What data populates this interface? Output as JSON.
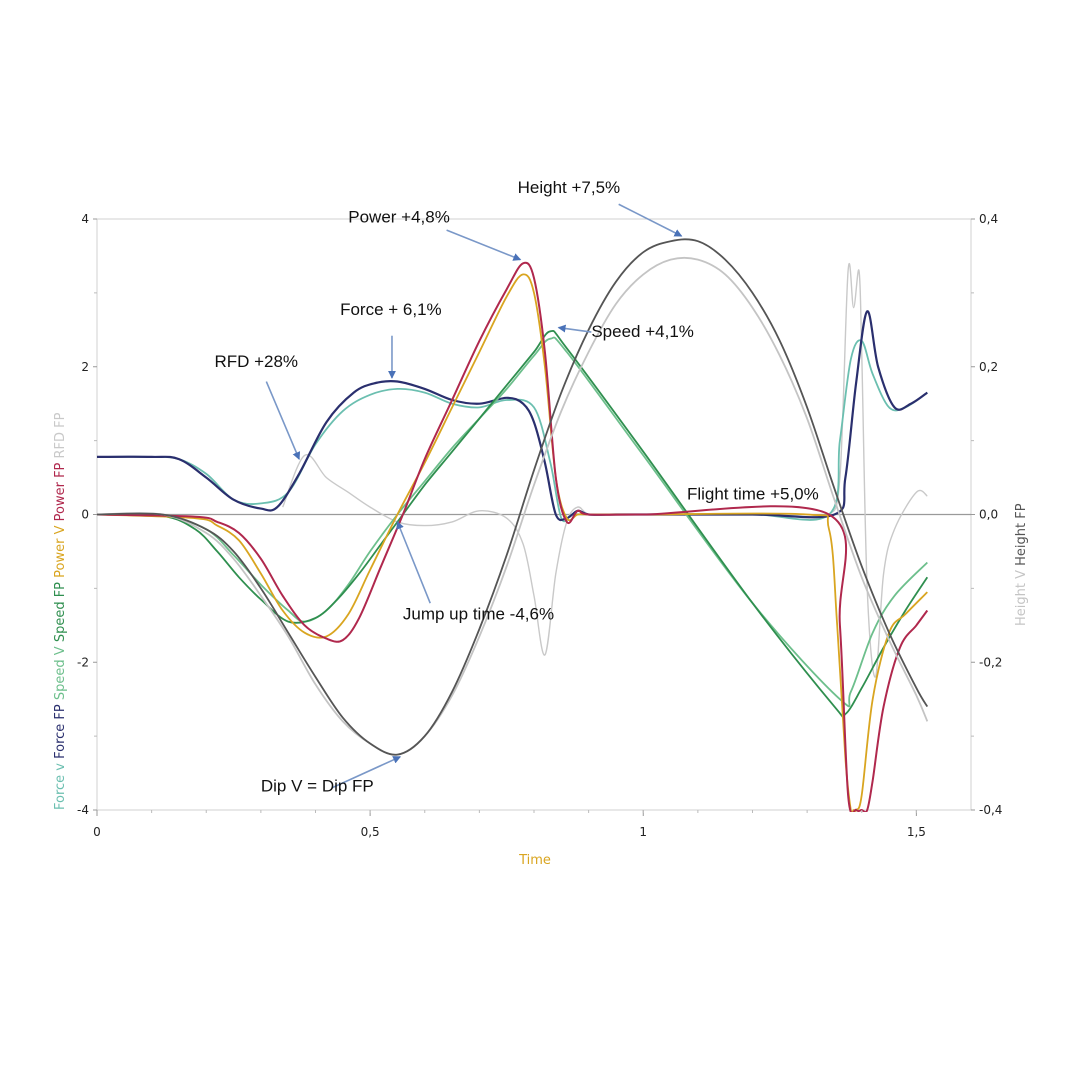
{
  "chart_data": {
    "type": "line",
    "title": "",
    "xlabel": "Time",
    "xlim": [
      0,
      1.6
    ],
    "ylim_left": [
      -4,
      4
    ],
    "ylim_right": [
      -0.4,
      0.4
    ],
    "x_ticks": [
      {
        "v": 0,
        "label": "0"
      },
      {
        "v": 0.5,
        "label": "0,5"
      },
      {
        "v": 1,
        "label": "1"
      },
      {
        "v": 1.5,
        "label": "1,5"
      }
    ],
    "y_left_ticks": [
      {
        "v": 4,
        "label": "4"
      },
      {
        "v": 2,
        "label": "2"
      },
      {
        "v": 0,
        "label": "0"
      },
      {
        "v": -2,
        "label": "-2"
      },
      {
        "v": -4,
        "label": "-4"
      }
    ],
    "y_right_ticks": [
      {
        "v": 0.4,
        "label": "0,4"
      },
      {
        "v": 0.2,
        "label": "0,2"
      },
      {
        "v": 0,
        "label": "0,0"
      },
      {
        "v": -0.2,
        "label": "-0,2"
      },
      {
        "v": -0.4,
        "label": "-0,4"
      }
    ],
    "left_axis_labels": [
      {
        "text": "Force v",
        "color": "#6bbfb0"
      },
      {
        "text": "Force FP",
        "color": "#2a2f6e"
      },
      {
        "text": "Speed V",
        "color": "#6dbf8c"
      },
      {
        "text": "Speed FP",
        "color": "#2f8f4f"
      },
      {
        "text": "Power V",
        "color": "#d9a520"
      },
      {
        "text": "Power FP",
        "color": "#b0284d"
      },
      {
        "text": "RFD FP",
        "color": "#c9c9c9"
      }
    ],
    "right_axis_labels": [
      {
        "text": "Height V",
        "color": "#c4c4c4"
      },
      {
        "text": "Height FP",
        "color": "#555555"
      }
    ],
    "series": [
      {
        "name": "RFD FP",
        "axis": "left",
        "color": "#c9c9c9",
        "width": 1.4,
        "x": [
          0.34,
          0.38,
          0.42,
          0.46,
          0.5,
          0.55,
          0.6,
          0.65,
          0.7,
          0.75,
          0.78,
          0.8,
          0.82,
          0.84,
          0.86,
          0.88,
          0.9,
          0.94,
          1.0,
          1.1,
          1.2,
          1.3,
          1.34,
          1.36,
          1.375,
          1.385,
          1.395,
          1.4,
          1.41,
          1.425,
          1.44,
          1.46,
          1.5,
          1.52
        ],
        "y": [
          0.1,
          0.8,
          0.5,
          0.3,
          0.1,
          -0.1,
          -0.15,
          -0.1,
          0.05,
          -0.05,
          -0.4,
          -1.1,
          -1.9,
          -0.8,
          -0.1,
          0.1,
          0,
          0,
          0,
          0,
          0,
          0,
          0,
          0.5,
          3.3,
          2.8,
          3.3,
          2.2,
          -1.0,
          -2.2,
          -0.8,
          -0.2,
          0.3,
          0.25
        ]
      },
      {
        "name": "Force v",
        "axis": "left",
        "color": "#6bbfb0",
        "width": 1.8,
        "x": [
          0,
          0.1,
          0.15,
          0.2,
          0.25,
          0.3,
          0.35,
          0.4,
          0.45,
          0.5,
          0.55,
          0.6,
          0.65,
          0.7,
          0.75,
          0.8,
          0.83,
          0.85,
          0.87,
          0.9,
          1.0,
          1.2,
          1.34,
          1.36,
          1.38,
          1.4,
          1.42,
          1.45,
          1.48,
          1.52
        ],
        "y": [
          0.78,
          0.78,
          0.75,
          0.55,
          0.2,
          0.15,
          0.3,
          0.95,
          1.4,
          1.62,
          1.7,
          1.65,
          1.5,
          1.45,
          1.55,
          1.45,
          0.7,
          -0.05,
          0.0,
          0.0,
          0.0,
          0.0,
          0.0,
          1.0,
          2.1,
          2.35,
          1.9,
          1.45,
          1.45,
          1.65
        ]
      },
      {
        "name": "Force FP",
        "axis": "left",
        "color": "#2a2f6e",
        "width": 2.2,
        "x": [
          0,
          0.1,
          0.15,
          0.2,
          0.25,
          0.3,
          0.33,
          0.37,
          0.42,
          0.47,
          0.51,
          0.55,
          0.6,
          0.65,
          0.7,
          0.75,
          0.78,
          0.8,
          0.82,
          0.84,
          0.86,
          0.88,
          0.9,
          0.95,
          1.0,
          1.2,
          1.35,
          1.37,
          1.39,
          1.41,
          1.43,
          1.46,
          1.49,
          1.52
        ],
        "y": [
          0.78,
          0.78,
          0.75,
          0.5,
          0.2,
          0.08,
          0.1,
          0.55,
          1.25,
          1.65,
          1.78,
          1.8,
          1.7,
          1.55,
          1.5,
          1.58,
          1.5,
          1.25,
          0.7,
          0.0,
          -0.05,
          0.05,
          0.0,
          0.0,
          0.0,
          0.0,
          0.0,
          0.5,
          1.8,
          2.75,
          2.0,
          1.45,
          1.5,
          1.65
        ]
      },
      {
        "name": "Speed V",
        "axis": "left",
        "color": "#6dbf8c",
        "width": 1.8,
        "x": [
          0,
          0.12,
          0.2,
          0.25,
          0.3,
          0.35,
          0.38,
          0.42,
          0.46,
          0.5,
          0.55,
          0.6,
          0.65,
          0.7,
          0.75,
          0.8,
          0.83,
          0.86,
          1.0,
          1.2,
          1.36,
          1.38,
          1.42,
          1.46,
          1.52
        ],
        "y": [
          0,
          -0.02,
          -0.2,
          -0.55,
          -0.95,
          -1.3,
          -1.45,
          -1.3,
          -0.95,
          -0.5,
          0,
          0.45,
          0.9,
          1.3,
          1.7,
          2.15,
          2.38,
          2.2,
          0.8,
          -1.2,
          -2.5,
          -2.4,
          -1.6,
          -1.1,
          -0.65
        ]
      },
      {
        "name": "Speed FP",
        "axis": "left",
        "color": "#2f8f4f",
        "width": 1.8,
        "x": [
          0,
          0.12,
          0.18,
          0.22,
          0.26,
          0.3,
          0.35,
          0.4,
          0.44,
          0.48,
          0.52,
          0.56,
          0.6,
          0.65,
          0.7,
          0.75,
          0.8,
          0.83,
          0.86,
          1.0,
          1.2,
          1.35,
          1.37,
          1.4,
          1.44,
          1.48,
          1.52
        ],
        "y": [
          0,
          -0.02,
          -0.2,
          -0.5,
          -0.85,
          -1.15,
          -1.45,
          -1.4,
          -1.15,
          -0.8,
          -0.4,
          0,
          0.4,
          0.85,
          1.3,
          1.75,
          2.2,
          2.48,
          2.25,
          0.85,
          -1.2,
          -2.6,
          -2.7,
          -2.35,
          -1.8,
          -1.3,
          -0.85
        ]
      },
      {
        "name": "Power V",
        "axis": "left",
        "color": "#d9a520",
        "width": 1.8,
        "x": [
          0,
          0.18,
          0.22,
          0.26,
          0.3,
          0.34,
          0.38,
          0.42,
          0.46,
          0.5,
          0.55,
          0.6,
          0.65,
          0.7,
          0.75,
          0.78,
          0.8,
          0.82,
          0.84,
          0.86,
          0.88,
          0.9,
          1.0,
          1.3,
          1.34,
          1.355,
          1.37,
          1.38,
          1.385,
          1.39,
          1.4,
          1.42,
          1.45,
          1.48,
          1.52
        ],
        "y": [
          0,
          -0.05,
          -0.15,
          -0.35,
          -0.8,
          -1.3,
          -1.6,
          -1.65,
          -1.35,
          -0.75,
          0,
          0.7,
          1.45,
          2.2,
          2.95,
          3.25,
          3.0,
          2.0,
          0.5,
          -0.05,
          0,
          0,
          0,
          0,
          -0.2,
          -1.5,
          -3.3,
          -4.0,
          -4.0,
          -4.0,
          -3.8,
          -2.5,
          -1.6,
          -1.35,
          -1.05
        ]
      },
      {
        "name": "Power FP",
        "axis": "left",
        "color": "#b0284d",
        "width": 2.0,
        "x": [
          0,
          0.18,
          0.22,
          0.26,
          0.3,
          0.34,
          0.38,
          0.42,
          0.45,
          0.48,
          0.52,
          0.56,
          0.6,
          0.65,
          0.7,
          0.75,
          0.78,
          0.8,
          0.82,
          0.84,
          0.86,
          0.88,
          0.9,
          1.0,
          1.34,
          1.36,
          1.375,
          1.39,
          1.4,
          1.41,
          1.42,
          1.44,
          1.47,
          1.5,
          1.52
        ],
        "y": [
          0,
          -0.03,
          -0.1,
          -0.25,
          -0.6,
          -1.1,
          -1.5,
          -1.68,
          -1.7,
          -1.4,
          -0.7,
          0.0,
          0.75,
          1.55,
          2.35,
          3.05,
          3.4,
          3.2,
          2.2,
          0.5,
          -0.1,
          0.05,
          0,
          0,
          0,
          -1.5,
          -3.8,
          -4.0,
          -4.0,
          -4.0,
          -3.6,
          -2.6,
          -1.8,
          -1.5,
          -1.3
        ]
      },
      {
        "name": "Height V",
        "axis": "right",
        "color": "#c4c4c4",
        "width": 1.8,
        "x": [
          0,
          0.12,
          0.2,
          0.25,
          0.3,
          0.35,
          0.4,
          0.45,
          0.5,
          0.55,
          0.6,
          0.65,
          0.7,
          0.75,
          0.8,
          0.85,
          0.9,
          0.95,
          1.0,
          1.05,
          1.1,
          1.15,
          1.2,
          1.25,
          1.3,
          1.35,
          1.4,
          1.45,
          1.5,
          1.52
        ],
        "y": [
          0,
          0,
          -0.025,
          -0.06,
          -0.11,
          -0.165,
          -0.23,
          -0.28,
          -0.31,
          -0.325,
          -0.3,
          -0.245,
          -0.165,
          -0.07,
          0.04,
          0.14,
          0.22,
          0.285,
          0.325,
          0.345,
          0.345,
          0.325,
          0.28,
          0.215,
          0.13,
          0.02,
          -0.085,
          -0.17,
          -0.245,
          -0.28
        ]
      },
      {
        "name": "Height FP",
        "axis": "right",
        "color": "#555555",
        "width": 1.8,
        "x": [
          0,
          0.12,
          0.2,
          0.25,
          0.3,
          0.35,
          0.4,
          0.45,
          0.5,
          0.55,
          0.6,
          0.65,
          0.7,
          0.75,
          0.8,
          0.85,
          0.9,
          0.95,
          1.0,
          1.05,
          1.1,
          1.15,
          1.2,
          1.25,
          1.3,
          1.35,
          1.4,
          1.45,
          1.5,
          1.52
        ],
        "y": [
          0,
          0,
          -0.02,
          -0.05,
          -0.1,
          -0.16,
          -0.22,
          -0.275,
          -0.31,
          -0.325,
          -0.3,
          -0.24,
          -0.155,
          -0.055,
          0.06,
          0.165,
          0.25,
          0.315,
          0.355,
          0.37,
          0.37,
          0.345,
          0.3,
          0.235,
          0.145,
          0.035,
          -0.07,
          -0.16,
          -0.235,
          -0.26
        ]
      }
    ],
    "annotations": [
      {
        "text": "Height +7,5%",
        "tx": 0.77,
        "ty": 4.35,
        "ax1": 0.955,
        "ay1": 4.2,
        "ax2": 1.07,
        "ay2": 3.77
      },
      {
        "text": "Power +4,8%",
        "tx": 0.46,
        "ty": 3.95,
        "ax1": 0.64,
        "ay1": 3.85,
        "ax2": 0.775,
        "ay2": 3.45
      },
      {
        "text": "Force + 6,1%",
        "tx": 0.445,
        "ty": 2.7,
        "ax1": 0.54,
        "ay1": 2.42,
        "ax2": 0.54,
        "ay2": 1.85
      },
      {
        "text": "Speed +4,1%",
        "tx": 0.905,
        "ty": 2.4,
        "ax1": 0.905,
        "ay1": 2.47,
        "ax2": 0.845,
        "ay2": 2.53
      },
      {
        "text": "RFD +28%",
        "tx": 0.215,
        "ty": 2.0,
        "ax1": 0.31,
        "ay1": 1.8,
        "ax2": 0.37,
        "ay2": 0.75
      },
      {
        "text": "Flight time +5,0%",
        "tx": 1.08,
        "ty": 0.2,
        "ax1": null,
        "ay1": null,
        "ax2": null,
        "ay2": null
      },
      {
        "text": "Jump up time -4,6%",
        "tx": 0.56,
        "ty": -1.42,
        "ax1": 0.61,
        "ay1": -1.2,
        "ax2": 0.55,
        "ay2": -0.1
      },
      {
        "text": "Dip V = Dip FP",
        "tx": 0.3,
        "ty": -3.75,
        "ax1": 0.43,
        "ay1": -3.7,
        "ax2": 0.555,
        "ay2": -3.28
      }
    ]
  }
}
